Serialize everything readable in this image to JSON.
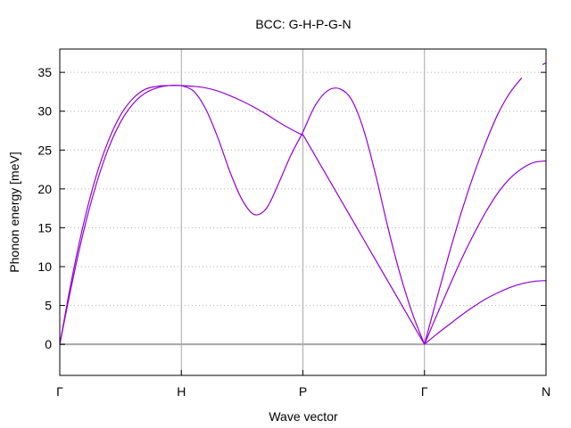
{
  "chart_data": {
    "type": "line",
    "title": "BCC: G-H-P-G-N",
    "xlabel": "Wave vector",
    "ylabel": "Phonon energy [meV]",
    "ylim": [
      -4,
      38
    ],
    "yticks": [
      0,
      5,
      10,
      15,
      20,
      25,
      30,
      35
    ],
    "xticks": [
      {
        "label": "Γ",
        "x": 0.0
      },
      {
        "label": "H",
        "x": 1.0
      },
      {
        "label": "P",
        "x": 2.0
      },
      {
        "label": "Γ",
        "x": 3.0
      },
      {
        "label": "N",
        "x": 4.0
      }
    ],
    "xlim": [
      0,
      4
    ],
    "grid": true,
    "zero_line": true,
    "series_color": "#9400d3",
    "series": [
      {
        "x": [
          0,
          0.1,
          0.2,
          0.3,
          0.4,
          0.5,
          0.6,
          0.7,
          0.8,
          0.9,
          1.0
        ],
        "values": [
          0,
          7.8,
          14.8,
          20.6,
          25.2,
          28.6,
          30.9,
          32.3,
          33.0,
          33.3,
          33.3
        ]
      },
      {
        "x": [
          0,
          0.1,
          0.2,
          0.3,
          0.4,
          0.5,
          0.6,
          0.7,
          0.8,
          0.9,
          1.0
        ],
        "values": [
          0,
          8.5,
          15.8,
          21.7,
          26.2,
          29.5,
          31.6,
          32.8,
          33.2,
          33.3,
          33.3
        ]
      },
      {
        "x": [
          1.0,
          1.1,
          1.2,
          1.3,
          1.4,
          1.5,
          1.6,
          1.7,
          1.8,
          1.9,
          2.0
        ],
        "values": [
          33.3,
          33.2,
          33.0,
          32.6,
          32.0,
          31.3,
          30.5,
          29.6,
          28.6,
          27.7,
          26.9
        ]
      },
      {
        "x": [
          1.0,
          1.1,
          1.2,
          1.3,
          1.4,
          1.5,
          1.6,
          1.7,
          1.8,
          1.9,
          2.0
        ],
        "values": [
          33.3,
          32.6,
          30.3,
          26.6,
          22.2,
          18.6,
          16.7,
          17.5,
          20.7,
          24.3,
          27.3
        ]
      },
      {
        "x": [
          2.0,
          2.1,
          2.2,
          2.3,
          2.4,
          2.5,
          2.6,
          2.7,
          2.8,
          2.9,
          3.0
        ],
        "values": [
          27.3,
          30.7,
          32.6,
          32.9,
          31.5,
          27.6,
          21.7,
          15.0,
          9.0,
          4.0,
          0
        ]
      },
      {
        "x": [
          2.0,
          2.1,
          2.2,
          2.3,
          2.4,
          2.5,
          2.6,
          2.7,
          2.8,
          2.9,
          3.0
        ],
        "values": [
          27.0,
          24.3,
          21.6,
          18.9,
          16.2,
          13.5,
          10.8,
          8.1,
          5.4,
          2.7,
          0
        ]
      },
      {
        "x": [
          3.0,
          3.1,
          3.2,
          3.3,
          3.4,
          3.5,
          3.6,
          3.7,
          3.8
        ],
        "values": [
          0,
          5.8,
          11.5,
          16.8,
          21.6,
          25.8,
          29.5,
          32.3,
          34.3
        ]
      },
      {
        "x": [
          3.0,
          3.1,
          3.2,
          3.3,
          3.4,
          3.5,
          3.6,
          3.7,
          3.8,
          3.9,
          4.0
        ],
        "values": [
          0,
          3.7,
          7.3,
          10.8,
          14.0,
          16.9,
          19.4,
          21.3,
          22.6,
          23.4,
          23.6
        ]
      },
      {
        "x": [
          3.0,
          3.1,
          3.2,
          3.3,
          3.4,
          3.5,
          3.6,
          3.7,
          3.8,
          3.9,
          4.0
        ],
        "values": [
          0,
          1.3,
          2.5,
          3.7,
          4.8,
          5.8,
          6.6,
          7.3,
          7.8,
          8.1,
          8.2
        ]
      },
      {
        "x": [
          3.97,
          4.0
        ],
        "values": [
          36.0,
          36.2
        ]
      }
    ]
  }
}
